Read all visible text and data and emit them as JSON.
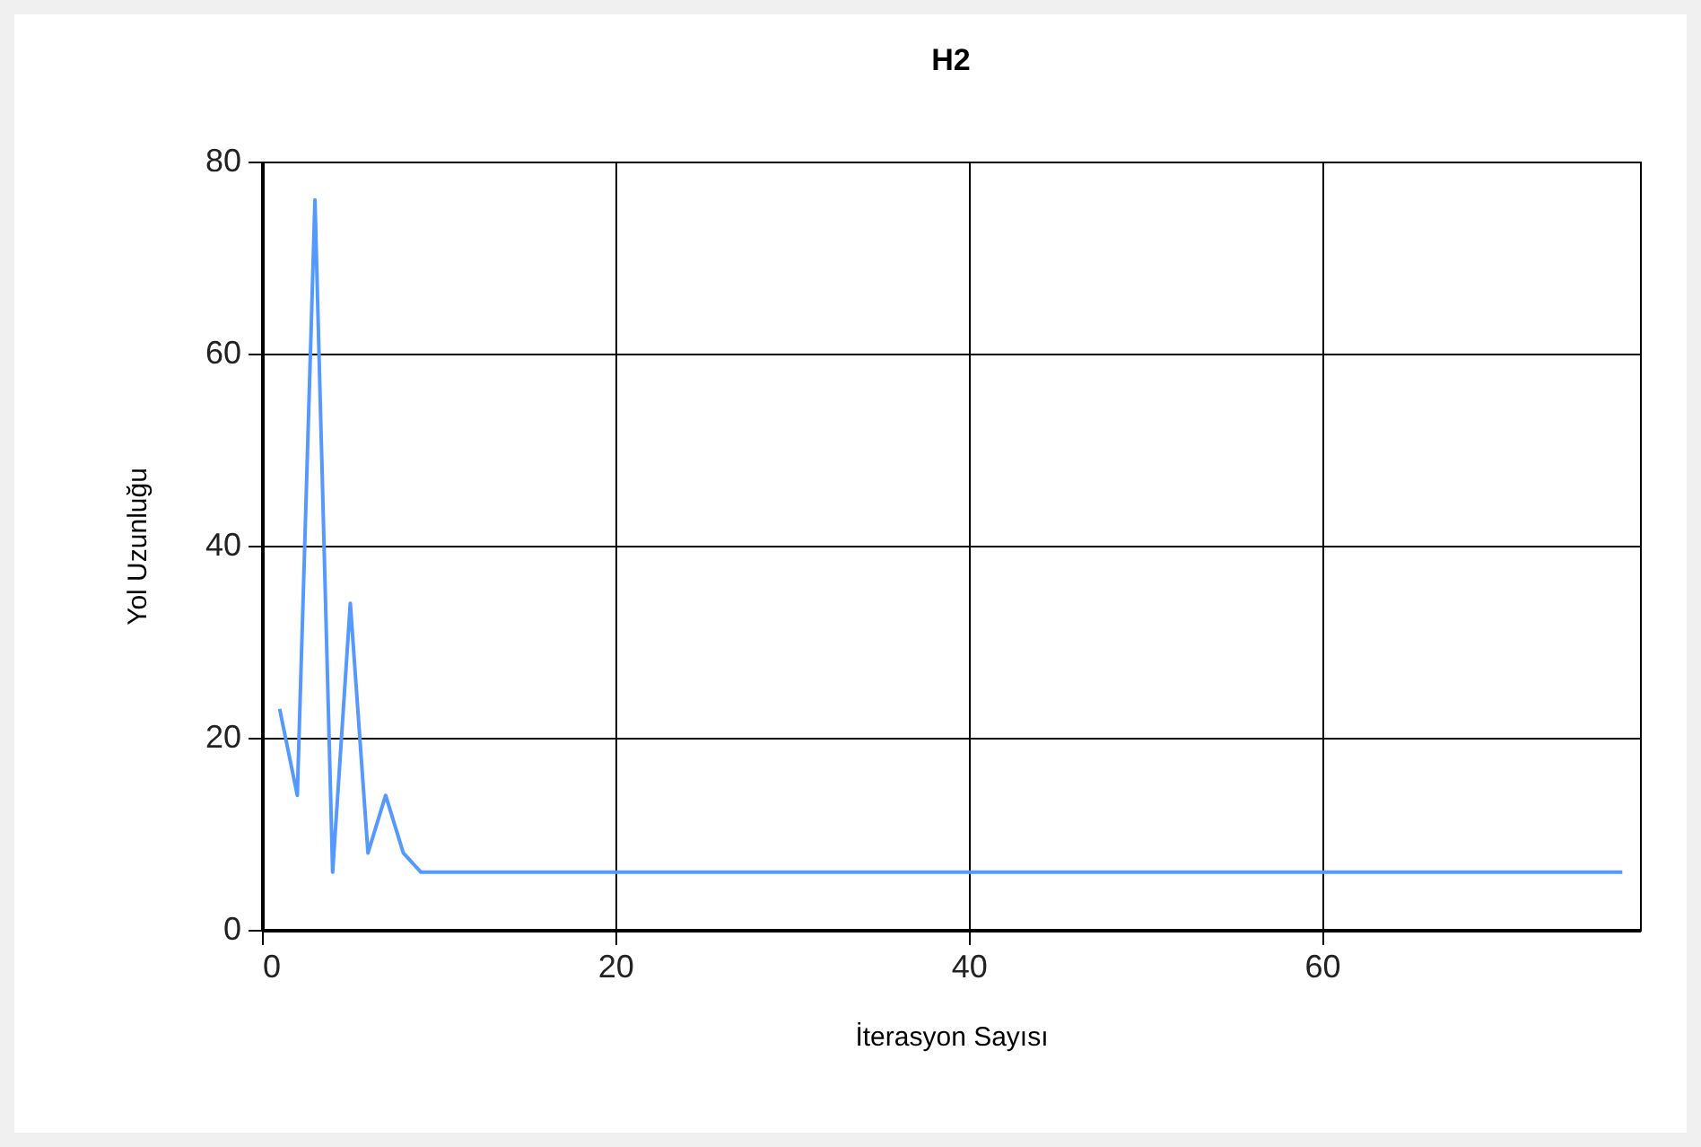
{
  "chart_data": {
    "type": "line",
    "title": "H2",
    "xlabel": "İterasyon Sayısı",
    "ylabel": "Yol Uzunluğu",
    "x": [
      1,
      2,
      3,
      4,
      5,
      6,
      7,
      8,
      9,
      77
    ],
    "series": [
      {
        "color": "#5599ff",
        "values": [
          23,
          14,
          76,
          6,
          34,
          8,
          14,
          8,
          6,
          6
        ]
      }
    ],
    "xlim": [
      0,
      78
    ],
    "xticks": [
      0,
      20,
      40,
      60
    ],
    "ylim": [
      0,
      80
    ],
    "yticks": [
      0,
      20,
      40,
      60,
      80
    ],
    "grid": true,
    "legend": false,
    "marker": "none",
    "line_style": "solid"
  }
}
